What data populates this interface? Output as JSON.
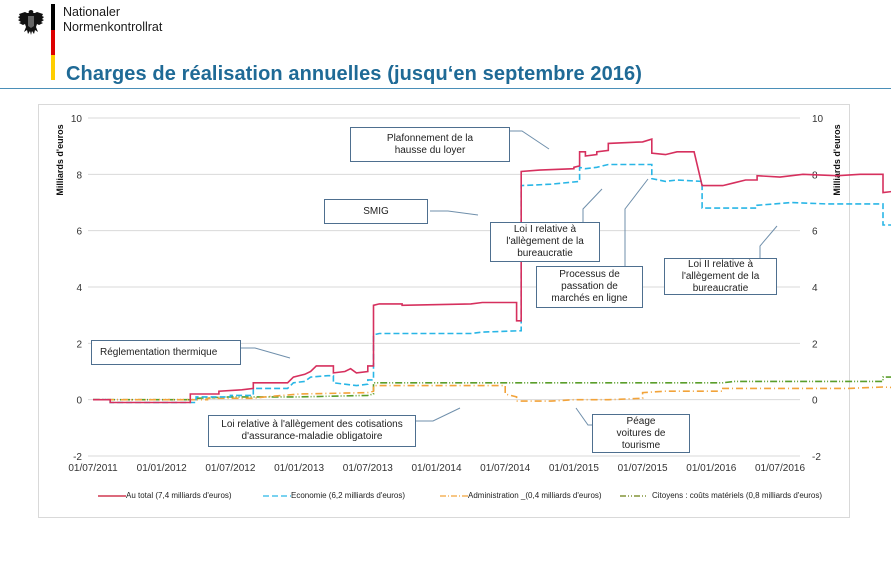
{
  "header": {
    "org_line1": "Nationaler",
    "org_line2": "Normenkontrollrat",
    "title": "Charges de réalisation annuelles (jusqu‘en septembre 2016)",
    "logo_icon": "federal-eagle-icon",
    "flag_colors": [
      "#000000",
      "#dd0000",
      "#ffce00"
    ],
    "title_color": "#1f6a96"
  },
  "chart_data": {
    "type": "line",
    "title": "Charges de réalisation annuelles (jusqu‘en septembre 2016)",
    "xlabel": "",
    "ylabel": "Milliards d'euros",
    "ylabel_right": "Milliards d'euros",
    "ylim": [
      -2,
      10
    ],
    "yticks": [
      "-2",
      "0",
      "2",
      "4",
      "6",
      "8",
      "10"
    ],
    "ytick_values": [
      -2,
      0,
      2,
      4,
      6,
      8,
      10
    ],
    "xticks": [
      "01/07/2011",
      "01/01/2012",
      "01/07/2012",
      "01/01/2013",
      "01/07/2013",
      "01/01/2014",
      "01/07/2014",
      "01/01/2015",
      "01/07/2015",
      "01/01/2016",
      "01/07/2016"
    ],
    "grid": true,
    "legend_position": "bottom",
    "x_unit": "months since 01/07/2011",
    "series": [
      {
        "name": "Au total  (7,4  milliards d'euros)",
        "color": "#d6305e",
        "dash": "solid",
        "points": [
          [
            0,
            0
          ],
          [
            1.5,
            0
          ],
          [
            1.5,
            -0.1
          ],
          [
            8.5,
            -0.1
          ],
          [
            8.5,
            0.2
          ],
          [
            11,
            0.2
          ],
          [
            11,
            0.3
          ],
          [
            13,
            0.35
          ],
          [
            14,
            0.4
          ],
          [
            14,
            0.6
          ],
          [
            17,
            0.6
          ],
          [
            17.5,
            0.8
          ],
          [
            18.5,
            0.9
          ],
          [
            19,
            1.0
          ],
          [
            19.5,
            1.2
          ],
          [
            21,
            1.2
          ],
          [
            21,
            0.95
          ],
          [
            22,
            1.0
          ],
          [
            22.5,
            1.1
          ],
          [
            23,
            0.95
          ],
          [
            24,
            1.0
          ],
          [
            24,
            1.2
          ],
          [
            24.5,
            1.2
          ],
          [
            24.5,
            3.35
          ],
          [
            25,
            3.4
          ],
          [
            27,
            3.4
          ],
          [
            27,
            3.35
          ],
          [
            33,
            3.4
          ],
          [
            34,
            3.45
          ],
          [
            37,
            3.45
          ],
          [
            37,
            2.8
          ],
          [
            37.4,
            2.8
          ],
          [
            37.4,
            8.1
          ],
          [
            39,
            8.15
          ],
          [
            42,
            8.2
          ],
          [
            42,
            8.25
          ],
          [
            42.5,
            8.3
          ],
          [
            42.5,
            8.8
          ],
          [
            43,
            8.8
          ],
          [
            43,
            8.65
          ],
          [
            44,
            8.7
          ],
          [
            44,
            8.8
          ],
          [
            45,
            8.85
          ],
          [
            45,
            9.1
          ],
          [
            48,
            9.15
          ],
          [
            48.8,
            9.25
          ],
          [
            48.8,
            8.75
          ],
          [
            50,
            8.7
          ],
          [
            51,
            8.8
          ],
          [
            52.5,
            8.8
          ],
          [
            53.2,
            7.6
          ],
          [
            55,
            7.6
          ],
          [
            56,
            7.7
          ],
          [
            57,
            7.8
          ],
          [
            58,
            7.8
          ],
          [
            58,
            7.95
          ],
          [
            60,
            7.9
          ],
          [
            62,
            8.0
          ],
          [
            65,
            7.95
          ],
          [
            67,
            8.0
          ],
          [
            69,
            8.0
          ],
          [
            69,
            7.35
          ],
          [
            70,
            7.4
          ],
          [
            71,
            7.4
          ]
        ]
      },
      {
        "name": "Economie  (6,2  milliards d'euros)",
        "color": "#29b6e6",
        "dash": "dashed",
        "points": [
          [
            0,
            0
          ],
          [
            1.5,
            0
          ],
          [
            1.5,
            -0.1
          ],
          [
            9,
            -0.1
          ],
          [
            9,
            0.1
          ],
          [
            12,
            0.1
          ],
          [
            12,
            0.15
          ],
          [
            14,
            0.15
          ],
          [
            14,
            0.4
          ],
          [
            17,
            0.4
          ],
          [
            17.5,
            0.6
          ],
          [
            18.5,
            0.65
          ],
          [
            19,
            0.8
          ],
          [
            20.5,
            0.85
          ],
          [
            21,
            0.85
          ],
          [
            21,
            0.6
          ],
          [
            22,
            0.55
          ],
          [
            23,
            0.5
          ],
          [
            24,
            0.55
          ],
          [
            24,
            0.7
          ],
          [
            24.5,
            0.7
          ],
          [
            24.5,
            2.3
          ],
          [
            25,
            2.35
          ],
          [
            33,
            2.35
          ],
          [
            34,
            2.4
          ],
          [
            37.4,
            2.45
          ],
          [
            37.4,
            7.6
          ],
          [
            40,
            7.65
          ],
          [
            42.5,
            7.75
          ],
          [
            42.5,
            8.25
          ],
          [
            43,
            8.2
          ],
          [
            44,
            8.25
          ],
          [
            45,
            8.35
          ],
          [
            48.8,
            8.35
          ],
          [
            48.8,
            7.85
          ],
          [
            50,
            7.75
          ],
          [
            51,
            7.8
          ],
          [
            53.2,
            7.75
          ],
          [
            53.2,
            6.8
          ],
          [
            58,
            6.8
          ],
          [
            58,
            6.9
          ],
          [
            61,
            7.0
          ],
          [
            64,
            6.95
          ],
          [
            66,
            6.95
          ],
          [
            69,
            6.95
          ],
          [
            69,
            6.2
          ],
          [
            71,
            6.2
          ]
        ]
      },
      {
        "name": "Administration _(0,4 milliards d'euros)",
        "color": "#f2a33a",
        "dash": "dashdot",
        "points": [
          [
            0,
            0
          ],
          [
            10,
            0
          ],
          [
            10,
            0.05
          ],
          [
            14,
            0.05
          ],
          [
            15,
            0.1
          ],
          [
            18,
            0.2
          ],
          [
            24,
            0.25
          ],
          [
            24.5,
            0.3
          ],
          [
            24.5,
            0.5
          ],
          [
            33,
            0.5
          ],
          [
            36,
            0.5
          ],
          [
            36,
            0.2
          ],
          [
            37,
            0.1
          ],
          [
            37,
            -0.05
          ],
          [
            40,
            -0.05
          ],
          [
            42,
            0.0
          ],
          [
            45,
            0.0
          ],
          [
            48,
            0.05
          ],
          [
            48,
            0.25
          ],
          [
            50,
            0.3
          ],
          [
            55,
            0.3
          ],
          [
            55,
            0.4
          ],
          [
            66,
            0.4
          ],
          [
            69,
            0.45
          ],
          [
            71,
            0.4
          ]
        ]
      },
      {
        "name": "Citoyens  : coûts matériels  (0,8 milliards d'euros)",
        "color": "#5a9e2a",
        "dash": "dashdotdot",
        "points": [
          [
            0,
            0
          ],
          [
            9,
            0
          ],
          [
            9,
            0.05
          ],
          [
            12,
            0.1
          ],
          [
            18,
            0.1
          ],
          [
            24,
            0.15
          ],
          [
            24.5,
            0.2
          ],
          [
            24.5,
            0.6
          ],
          [
            30,
            0.6
          ],
          [
            48,
            0.6
          ],
          [
            55,
            0.6
          ],
          [
            56,
            0.65
          ],
          [
            66,
            0.65
          ],
          [
            69,
            0.65
          ],
          [
            69,
            0.8
          ],
          [
            71,
            0.8
          ]
        ]
      }
    ],
    "annotations": [
      {
        "text": "Plafonnement de la hausse du loyer",
        "lines": [
          "Plafonnement de la",
          "hausse du loyer"
        ]
      },
      {
        "text": "SMIG",
        "lines": [
          "SMIG"
        ]
      },
      {
        "text": "Loi I relative à l'allègement de la bureaucratie",
        "lines": [
          "Loi I relative à",
          "l'allègement  de la",
          "bureaucratie"
        ]
      },
      {
        "text": "Processus de passation de marchés en ligne",
        "lines": [
          "Processus de",
          "passation de",
          "marchés en  ligne"
        ]
      },
      {
        "text": "Loi II relative à l'allègement de la bureaucratie",
        "lines": [
          "Loi II relative à",
          "l'allègement  de la",
          "bureaucratie"
        ]
      },
      {
        "text": "Réglementation thermique",
        "lines": [
          "Réglementation thermique"
        ]
      },
      {
        "text": "Loi relative à l'allègement des cotisations d'assurance-maladie obligatoire",
        "lines": [
          "Loi relative à l'allègement des cotisations",
          "d'assurance-maladie obligatoire"
        ]
      },
      {
        "text": "Péage voitures de tourisme",
        "lines": [
          "Péage",
          "voitures de",
          "tourisme"
        ]
      }
    ]
  }
}
